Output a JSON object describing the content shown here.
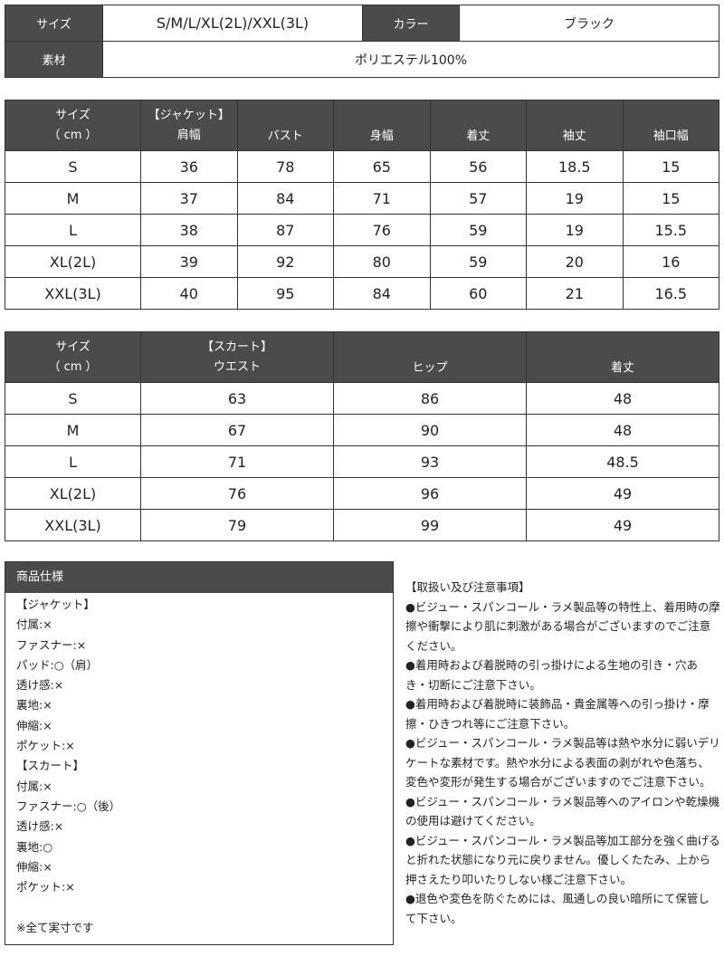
{
  "summary": {
    "size_label": "サイズ",
    "size_value": "S/M/L/XL(2L)/XXL(3L)",
    "color_label": "カラー",
    "color_value": "ブラック",
    "material_label": "素材",
    "material_value": "ポリエステル100%"
  },
  "jacket": {
    "size_header": [
      "サイズ",
      "（ cm ）"
    ],
    "section": "【ジャケット】",
    "columns": [
      "肩幅",
      "バスト",
      "身幅",
      "着丈",
      "袖丈",
      "袖口幅"
    ],
    "rows": [
      [
        "S",
        "36",
        "78",
        "65",
        "56",
        "18.5",
        "15"
      ],
      [
        "M",
        "37",
        "84",
        "71",
        "57",
        "19",
        "15"
      ],
      [
        "L",
        "38",
        "87",
        "76",
        "59",
        "19",
        "15.5"
      ],
      [
        "XL(2L)",
        "39",
        "92",
        "80",
        "59",
        "20",
        "16"
      ],
      [
        "XXL(3L)",
        "40",
        "95",
        "84",
        "60",
        "21",
        "16.5"
      ]
    ]
  },
  "skirt": {
    "size_header": [
      "サイズ",
      "（ cm ）"
    ],
    "section": "【スカート】",
    "columns": [
      "ウエスト",
      "ヒップ",
      "着丈"
    ],
    "rows": [
      [
        "S",
        "63",
        "86",
        "48"
      ],
      [
        "M",
        "67",
        "90",
        "48"
      ],
      [
        "L",
        "71",
        "93",
        "48.5"
      ],
      [
        "XL(2L)",
        "76",
        "96",
        "49"
      ],
      [
        "XXL(3L)",
        "79",
        "99",
        "49"
      ]
    ]
  },
  "spec": {
    "title": "商品仕様",
    "lines": [
      "【ジャケット】",
      "付属:×",
      "ファスナー:×",
      "パッド:○（肩）",
      "透け感:×",
      "裏地:×",
      "伸縮:×",
      "ポケット:×",
      "【スカート】",
      "付属:×",
      "ファスナー:○（後）",
      "透け感:×",
      "裏地:○",
      "伸縮:×",
      "ポケット:×",
      "",
      "※全て実寸です"
    ]
  },
  "notes": {
    "title": "【取扱い及び注意事項】",
    "items": [
      "●ビジュー・スパンコール・ラメ製品等の特性上、着用時の摩擦や衝撃により肌に刺激がある場合がございますのでご注意ください。",
      "●着用時および着脱時の引っ掛けによる生地の引き・穴あき・切断にご注意下さい。",
      "●着用時および着脱時に装飾品・貴金属等への引っ掛け・摩擦・ひきつれ等にご注意下さい。",
      "●ビジュー・スパンコール・ラメ製品等は熱や水分に弱いデリケートな素材です。熱や水分による表面の剥がれや色落ち、変色や変形が発生する場合がございますのでご注意下さい。",
      "●ビジュー・スパンコール・ラメ製品等へのアイロンや乾燥機の使用は避けてください。",
      "●ビジュー・スパンコール・ラメ製品等加工部分を強く曲げると折れた状態になり元に戻りません。優しくたたみ、上から押さえたり叩いたりしない様ご注意下さい。",
      "●退色や変色を防ぐためには、風通しの良い暗所にて保管して下さい。"
    ]
  }
}
